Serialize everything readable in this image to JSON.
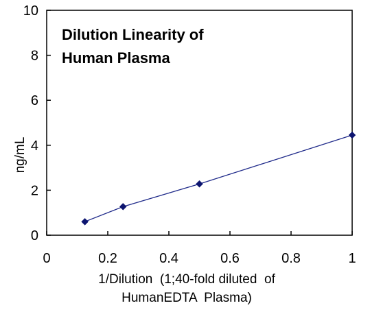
{
  "chart_data": {
    "type": "scatter",
    "title_lines": [
      "Dilution Linearity of",
      "Human Plasma"
    ],
    "xlabel_lines": [
      "1/Dilution  (1;40-fold diluted  of",
      "HumanEDTA  Plasma)"
    ],
    "ylabel": "ng/mL",
    "xlim": [
      0,
      1
    ],
    "ylim": [
      0,
      10
    ],
    "x_ticks": [
      0,
      0.2,
      0.4,
      0.6,
      0.8,
      1
    ],
    "x_tick_labels": [
      "0",
      "0.2",
      "0.4",
      "0.6",
      "0.8",
      "1"
    ],
    "y_ticks": [
      0,
      2,
      4,
      6,
      8,
      10
    ],
    "y_tick_labels": [
      "0",
      "2",
      "4",
      "6",
      "8",
      "10"
    ],
    "grid": false,
    "series": [
      {
        "x": [
          0.125,
          0.25,
          0.5,
          1
        ],
        "y": [
          0.6,
          1.27,
          2.28,
          4.45
        ],
        "color": "#1f2a8a",
        "marker": "diamond",
        "line": true
      }
    ]
  }
}
